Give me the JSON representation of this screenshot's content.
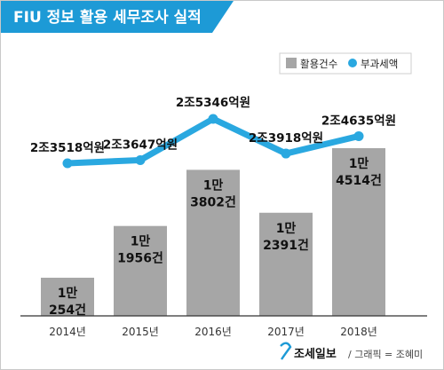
{
  "chart_data": {
    "type": "bar",
    "title": "FIU 정보 활용 세무조사 실적",
    "categories": [
      "2014년",
      "2015년",
      "2016년",
      "2017년",
      "2018년"
    ],
    "series": [
      {
        "name": "활용건수",
        "type": "bar",
        "values": [
          10254,
          11956,
          13802,
          12391,
          14514
        ],
        "labels": [
          [
            "1만",
            "254건"
          ],
          [
            "1만",
            "1956건"
          ],
          [
            "1만",
            "3802건"
          ],
          [
            "1만",
            "2391건"
          ],
          [
            "1만",
            "4514건"
          ]
        ],
        "color": "#a6a6a6"
      },
      {
        "name": "부과세액",
        "type": "line",
        "unit": "억원",
        "values": [
          23518,
          23647,
          25346,
          23918,
          24635
        ],
        "labels": [
          "2조3518억원",
          "2조3647억원",
          "2조5346억원",
          "2조3918억원",
          "2조4635억원"
        ],
        "color": "#2aa8e0"
      }
    ],
    "legend_position": "top-right",
    "grid": false
  },
  "credit": {
    "logo": "조세일보",
    "text": "/ 그래픽 = 조혜미"
  }
}
